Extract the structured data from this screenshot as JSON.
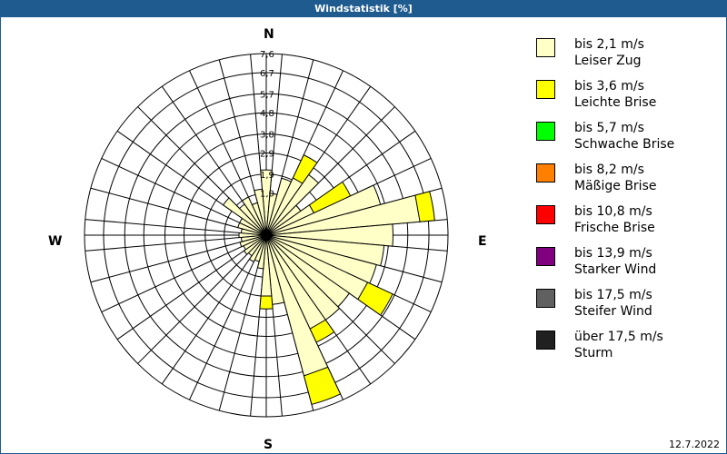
{
  "window": {
    "title": "Windstatistik [%]",
    "date": "12.7.2022",
    "frame_color": "#1f5b8f"
  },
  "chart_data": {
    "type": "polar-bar",
    "title": "Windstatistik [%]",
    "center": [
      293,
      259
    ],
    "inner_radius_px": 23,
    "outer_radius_px": 200,
    "rmax": 7.6,
    "ring_labels": [
      "1,0",
      "1,9",
      "2,9",
      "3,8",
      "4,8",
      "5,7",
      "6,7",
      "7,6"
    ],
    "ring_values": [
      1.0,
      1.9,
      2.9,
      3.8,
      4.8,
      5.7,
      6.7,
      7.6
    ],
    "cardinals": {
      "N": "N",
      "E": "E",
      "S": "S",
      "W": "W"
    },
    "sector_width_deg": 10,
    "spoke_count": 36,
    "series": [
      {
        "name": "bis 2,1 m/s",
        "color": "#ffffc8"
      },
      {
        "name": "bis 3,6 m/s",
        "color": "#ffff00"
      }
    ],
    "sectors": [
      {
        "dir": 0,
        "values": [
          2.1,
          0
        ]
      },
      {
        "dir": 10,
        "values": [
          1.0,
          0
        ]
      },
      {
        "dir": 20,
        "values": [
          1.8,
          0
        ]
      },
      {
        "dir": 30,
        "values": [
          2.0,
          1.2
        ]
      },
      {
        "dir": 40,
        "values": [
          2.5,
          0
        ]
      },
      {
        "dir": 50,
        "values": [
          1.0,
          0
        ]
      },
      {
        "dir": 60,
        "values": [
          1.5,
          1.9
        ]
      },
      {
        "dir": 70,
        "values": [
          4.6,
          0
        ]
      },
      {
        "dir": 80,
        "values": [
          6.3,
          0.7
        ]
      },
      {
        "dir": 90,
        "values": [
          5.0,
          0
        ]
      },
      {
        "dir": 100,
        "values": [
          4.6,
          0
        ]
      },
      {
        "dir": 110,
        "values": [
          4.4,
          0
        ]
      },
      {
        "dir": 120,
        "values": [
          4.3,
          1.3
        ]
      },
      {
        "dir": 130,
        "values": [
          3.8,
          0
        ]
      },
      {
        "dir": 140,
        "values": [
          3.9,
          0
        ]
      },
      {
        "dir": 150,
        "values": [
          3.9,
          0.7
        ]
      },
      {
        "dir": 160,
        "values": [
          5.9,
          1.4
        ]
      },
      {
        "dir": 170,
        "values": [
          2.3,
          0
        ]
      },
      {
        "dir": 180,
        "values": [
          1.9,
          0.6
        ]
      },
      {
        "dir": 190,
        "values": [
          0.6,
          0
        ]
      },
      {
        "dir": 200,
        "values": [
          0.3,
          0
        ]
      },
      {
        "dir": 210,
        "values": [
          0.4,
          0
        ]
      },
      {
        "dir": 220,
        "values": [
          0.2,
          0
        ]
      },
      {
        "dir": 230,
        "values": [
          0.3,
          0
        ]
      },
      {
        "dir": 240,
        "values": [
          0.2,
          0
        ]
      },
      {
        "dir": 250,
        "values": [
          0.3,
          0
        ]
      },
      {
        "dir": 260,
        "values": [
          0.2,
          0
        ]
      },
      {
        "dir": 270,
        "values": [
          0.3,
          0
        ]
      },
      {
        "dir": 280,
        "values": [
          0.2,
          0
        ]
      },
      {
        "dir": 290,
        "values": [
          0.4,
          0
        ]
      },
      {
        "dir": 300,
        "values": [
          0.4,
          0
        ]
      },
      {
        "dir": 310,
        "values": [
          1.5,
          0
        ]
      },
      {
        "dir": 320,
        "values": [
          0.8,
          0
        ]
      },
      {
        "dir": 330,
        "values": [
          1.0,
          0
        ]
      },
      {
        "dir": 340,
        "values": [
          0.6,
          0
        ]
      },
      {
        "dir": 350,
        "values": [
          1.2,
          0
        ]
      }
    ]
  },
  "legend": [
    {
      "line1": "bis 2,1 m/s",
      "line2": "Leiser Zug",
      "color": "#ffffc8"
    },
    {
      "line1": "bis 3,6 m/s",
      "line2": "Leichte Brise",
      "color": "#ffff00"
    },
    {
      "line1": "bis 5,7 m/s",
      "line2": "Schwache Brise",
      "color": "#00ff00"
    },
    {
      "line1": "bis 8,2 m/s",
      "line2": "Mäßige Brise",
      "color": "#ff8000"
    },
    {
      "line1": "bis 10,8 m/s",
      "line2": "Frische Brise",
      "color": "#ff0000"
    },
    {
      "line1": "bis 13,9 m/s",
      "line2": "Starker Wind",
      "color": "#800080"
    },
    {
      "line1": "bis 17,5 m/s",
      "line2": "Steifer Wind",
      "color": "#606060"
    },
    {
      "line1": "über 17,5 m/s",
      "line2": "Sturm",
      "color": "#202020"
    }
  ]
}
